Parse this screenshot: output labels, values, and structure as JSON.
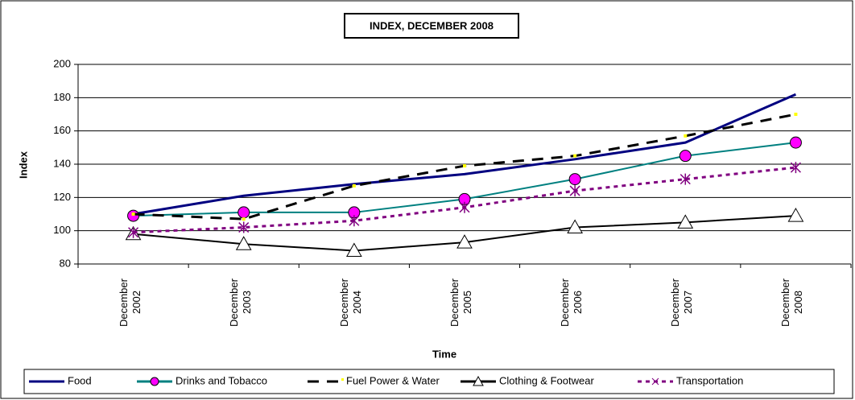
{
  "chart_data": {
    "type": "line",
    "title": "INDEX, DECEMBER 2008",
    "x_label": "Time",
    "y_label": "Index",
    "categories": [
      "December 2002",
      "December 2003",
      "December 2004",
      "December 2005",
      "December 2006",
      "December 2007",
      "December 2008"
    ],
    "ylim": [
      80,
      200
    ],
    "yticks": [
      80,
      100,
      120,
      140,
      160,
      180,
      200
    ],
    "grid": true,
    "legend": "bottom",
    "series": [
      {
        "name": "Food",
        "color": "#000080",
        "dash": "solid",
        "marker": "none",
        "values": [
          110,
          121,
          128,
          134,
          143,
          153,
          182
        ]
      },
      {
        "name": "Drinks and Tobacco",
        "color": "#008080",
        "dash": "solid",
        "marker": "circle",
        "values": [
          109,
          111,
          111,
          119,
          131,
          145,
          153
        ]
      },
      {
        "name": "Fuel Power & Water",
        "color": "#000000",
        "dash": "dashed",
        "marker": "dot",
        "values": [
          110,
          107,
          127,
          139,
          145,
          157,
          170
        ]
      },
      {
        "name": "Clothing & Footwear",
        "color": "#000000",
        "dash": "solid",
        "marker": "triangle",
        "values": [
          98,
          92,
          88,
          93,
          102,
          105,
          109
        ]
      },
      {
        "name": "Transportation",
        "color": "#800080",
        "dash": "dotted",
        "marker": "star",
        "values": [
          99,
          102,
          106,
          114,
          124,
          131,
          138
        ]
      }
    ]
  }
}
